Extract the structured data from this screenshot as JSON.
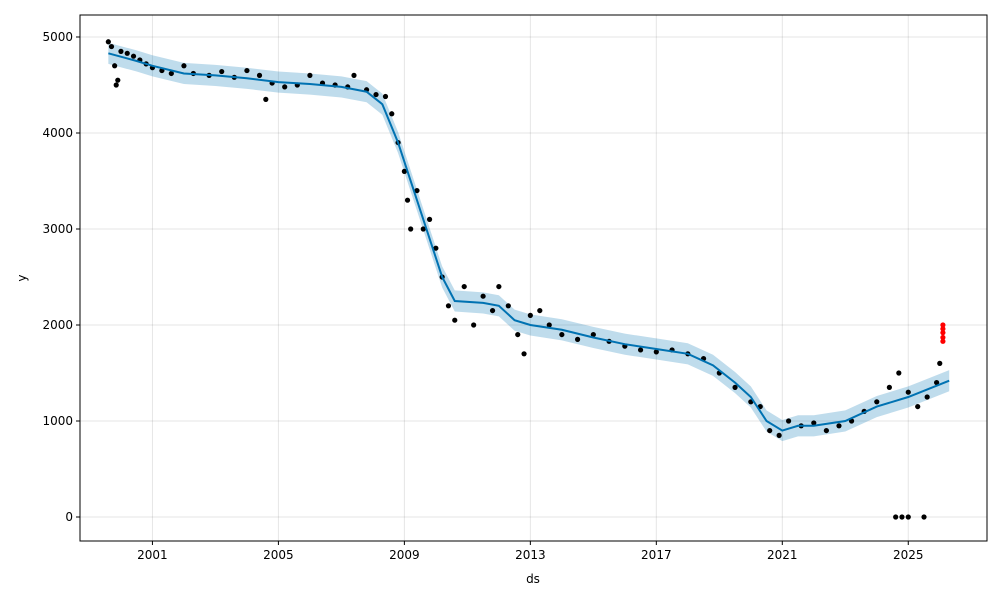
{
  "chart_data": {
    "type": "line",
    "x_label": "ds",
    "y_label": "y",
    "xlim": [
      1998.7,
      2027.5
    ],
    "ylim": [
      -250,
      5229
    ],
    "xticks": [
      2001,
      2005,
      2009,
      2013,
      2017,
      2021,
      2025
    ],
    "yticks": [
      0,
      1000,
      2000,
      3000,
      4000,
      5000
    ],
    "grid": true,
    "forecast": {
      "color": "#0072b2",
      "band_color": "#0072b2",
      "x": [
        1999.6,
        2000.5,
        2001,
        2002,
        2003,
        2004,
        2005,
        2006,
        2007,
        2007.8,
        2008.3,
        2008.8,
        2009.3,
        2009.8,
        2010.2,
        2010.6,
        2011.5,
        2012,
        2012.5,
        2013,
        2014,
        2015,
        2016,
        2017,
        2018,
        2018.8,
        2019.5,
        2020,
        2020.5,
        2021,
        2021.5,
        2022,
        2023,
        2024,
        2025,
        2026.3
      ],
      "values": [
        4830,
        4750,
        4700,
        4620,
        4600,
        4570,
        4530,
        4510,
        4480,
        4430,
        4300,
        3900,
        3400,
        2900,
        2500,
        2250,
        2230,
        2200,
        2050,
        2000,
        1950,
        1870,
        1800,
        1750,
        1700,
        1580,
        1400,
        1250,
        1000,
        900,
        950,
        950,
        1000,
        1150,
        1250,
        1420
      ],
      "upper": [
        4940,
        4860,
        4810,
        4730,
        4710,
        4680,
        4640,
        4620,
        4590,
        4540,
        4410,
        4010,
        3510,
        3010,
        2610,
        2360,
        2340,
        2310,
        2160,
        2110,
        2060,
        1980,
        1910,
        1860,
        1810,
        1690,
        1510,
        1360,
        1110,
        1010,
        1060,
        1060,
        1110,
        1260,
        1360,
        1530
      ],
      "lower": [
        4720,
        4640,
        4590,
        4510,
        4490,
        4460,
        4420,
        4400,
        4370,
        4320,
        4190,
        3790,
        3290,
        2790,
        2390,
        2140,
        2120,
        2090,
        1940,
        1890,
        1840,
        1760,
        1690,
        1640,
        1590,
        1470,
        1290,
        1140,
        890,
        790,
        840,
        840,
        890,
        1040,
        1140,
        1310
      ]
    },
    "observed": {
      "color": "#000000",
      "x": [
        1999.6,
        1999.7,
        1999.8,
        1999.85,
        1999.9,
        2000.0,
        2000.2,
        2000.4,
        2000.6,
        2000.8,
        2001.0,
        2001.3,
        2001.6,
        2002.0,
        2002.3,
        2002.8,
        2003.2,
        2003.6,
        2004.0,
        2004.4,
        2004.6,
        2004.8,
        2005.2,
        2005.6,
        2006.0,
        2006.4,
        2006.8,
        2007.2,
        2007.4,
        2007.8,
        2008.1,
        2008.4,
        2008.6,
        2008.8,
        2009.0,
        2009.1,
        2009.2,
        2009.4,
        2009.6,
        2009.8,
        2010.0,
        2010.2,
        2010.4,
        2010.6,
        2010.9,
        2011.2,
        2011.5,
        2011.8,
        2012.0,
        2012.3,
        2012.6,
        2012.8,
        2013.0,
        2013.3,
        2013.6,
        2014.0,
        2014.5,
        2015.0,
        2015.5,
        2016.0,
        2016.5,
        2017.0,
        2017.5,
        2018.0,
        2018.5,
        2019.0,
        2019.5,
        2020.0,
        2020.3,
        2020.6,
        2020.9,
        2021.2,
        2021.6,
        2022.0,
        2022.4,
        2022.8,
        2023.2,
        2023.6,
        2024.0,
        2024.4,
        2024.7,
        2025.0,
        2025.3,
        2025.6,
        2025.9,
        2026.0,
        2024.6,
        2024.8,
        2025.0,
        2025.5
      ],
      "values": [
        4950,
        4900,
        4700,
        4500,
        4550,
        4850,
        4830,
        4800,
        4760,
        4720,
        4680,
        4650,
        4620,
        4700,
        4620,
        4600,
        4640,
        4580,
        4650,
        4600,
        4350,
        4520,
        4480,
        4500,
        4600,
        4520,
        4500,
        4480,
        4600,
        4450,
        4400,
        4380,
        4200,
        3900,
        3600,
        3300,
        3000,
        3400,
        3000,
        3100,
        2800,
        2500,
        2200,
        2050,
        2400,
        2000,
        2300,
        2150,
        2400,
        2200,
        1900,
        1700,
        2100,
        2150,
        2000,
        1900,
        1850,
        1900,
        1830,
        1780,
        1740,
        1720,
        1740,
        1700,
        1650,
        1500,
        1350,
        1200,
        1150,
        900,
        850,
        1000,
        950,
        980,
        900,
        950,
        1000,
        1100,
        1200,
        1350,
        1500,
        1300,
        1150,
        1250,
        1400,
        1600,
        0,
        0,
        0,
        0
      ]
    },
    "future": {
      "color": "#ff0000",
      "x": [
        2026.1,
        2026.1,
        2026.1,
        2026.1,
        2026.1
      ],
      "values": [
        1830,
        1870,
        1920,
        1960,
        2000
      ]
    }
  }
}
